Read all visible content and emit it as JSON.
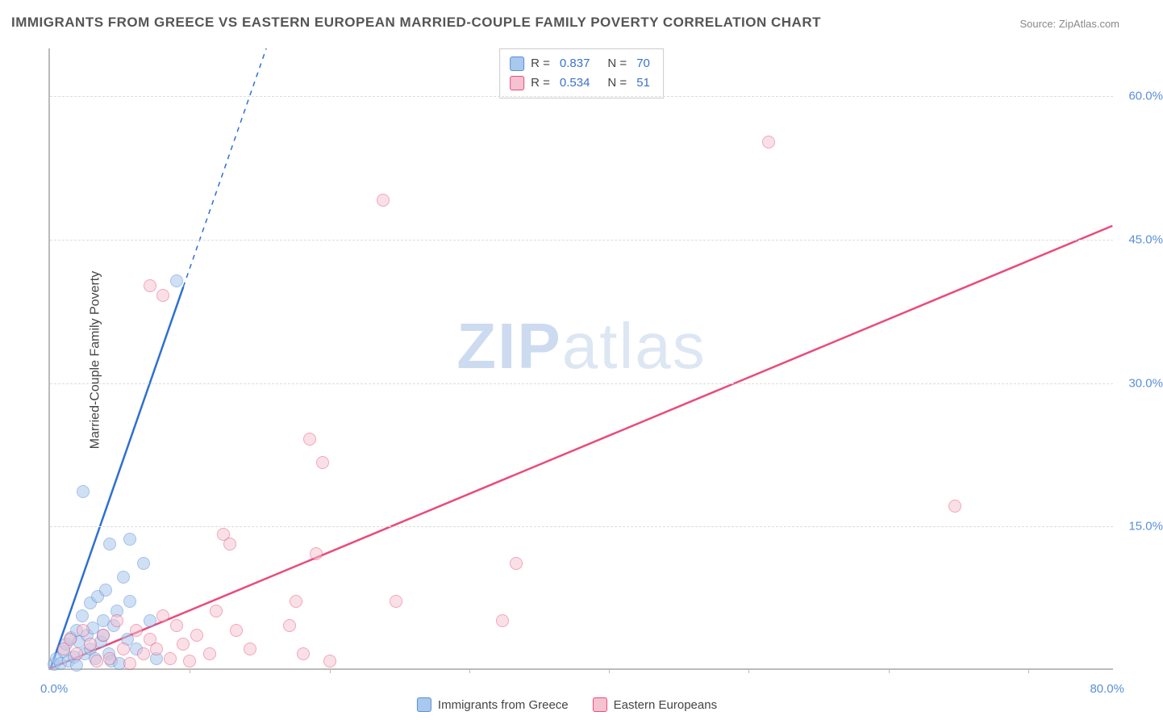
{
  "title": "IMMIGRANTS FROM GREECE VS EASTERN EUROPEAN MARRIED-COUPLE FAMILY POVERTY CORRELATION CHART",
  "source": "Source: ZipAtlas.com",
  "ylabel": "Married-Couple Family Poverty",
  "watermark_zip": "ZIP",
  "watermark_atlas": "atlas",
  "chart": {
    "type": "scatter",
    "background_color": "#ffffff",
    "grid_color": "#dddddd",
    "axis_color": "#bbbbbb",
    "tick_label_color": "#5a8fd6",
    "tick_fontsize": 15,
    "xlim": [
      0,
      80
    ],
    "ylim": [
      0,
      65
    ],
    "xticks": [
      0,
      80
    ],
    "xtick_labels": [
      "0.0%",
      "80.0%"
    ],
    "xtick_minor_positions": [
      10.5,
      21,
      31.5,
      42,
      52.5,
      63,
      73.5
    ],
    "yticks": [
      15,
      30,
      45,
      60
    ],
    "ytick_labels": [
      "15.0%",
      "30.0%",
      "45.0%",
      "60.0%"
    ],
    "marker_radius": 8,
    "marker_border_width": 1.5,
    "series": [
      {
        "name": "Immigrants from Greece",
        "fill_color": "#a9c8ee",
        "border_color": "#5a8fd6",
        "fill_opacity": 0.55,
        "trend_color": "#2f6fd0",
        "trend_width": 2.5,
        "trend_slope": 4.0,
        "trend_intercept": 0,
        "trend_dashed_above_x": 10,
        "R": "0.837",
        "N": "70",
        "points": [
          [
            0.3,
            0.4
          ],
          [
            0.5,
            1.0
          ],
          [
            0.8,
            0.5
          ],
          [
            1.0,
            1.8
          ],
          [
            1.2,
            2.5
          ],
          [
            1.4,
            0.8
          ],
          [
            1.6,
            3.2
          ],
          [
            1.8,
            1.2
          ],
          [
            2.0,
            4.0
          ],
          [
            2.0,
            0.3
          ],
          [
            2.2,
            2.8
          ],
          [
            2.4,
            5.5
          ],
          [
            2.6,
            1.5
          ],
          [
            2.8,
            3.5
          ],
          [
            3.0,
            6.8
          ],
          [
            3.0,
            2.0
          ],
          [
            3.2,
            4.2
          ],
          [
            3.4,
            1.0
          ],
          [
            3.6,
            7.5
          ],
          [
            3.8,
            2.8
          ],
          [
            4.0,
            5.0
          ],
          [
            4.0,
            3.5
          ],
          [
            4.2,
            8.2
          ],
          [
            4.4,
            1.5
          ],
          [
            4.6,
            0.8
          ],
          [
            4.8,
            4.5
          ],
          [
            5.0,
            6.0
          ],
          [
            5.2,
            0.5
          ],
          [
            5.5,
            9.5
          ],
          [
            5.8,
            3.0
          ],
          [
            6.0,
            7.0
          ],
          [
            6.5,
            2.0
          ],
          [
            7.0,
            11.0
          ],
          [
            7.5,
            5.0
          ],
          [
            8.0,
            1.0
          ],
          [
            2.5,
            18.5
          ],
          [
            4.5,
            13.0
          ],
          [
            6.0,
            13.5
          ],
          [
            9.5,
            40.5
          ]
        ]
      },
      {
        "name": "Eastern Europeans",
        "fill_color": "#f5c2d1",
        "border_color": "#e94b7a",
        "fill_opacity": 0.5,
        "trend_color": "#e94b7a",
        "trend_width": 2.5,
        "trend_slope": 0.58,
        "trend_intercept": 0,
        "R": "0.534",
        "N": "51",
        "points": [
          [
            1.0,
            2.0
          ],
          [
            1.5,
            3.0
          ],
          [
            2.0,
            1.5
          ],
          [
            2.5,
            4.0
          ],
          [
            3.0,
            2.5
          ],
          [
            3.5,
            0.8
          ],
          [
            4.0,
            3.5
          ],
          [
            4.5,
            1.0
          ],
          [
            5.0,
            5.0
          ],
          [
            5.5,
            2.0
          ],
          [
            6.0,
            0.5
          ],
          [
            6.5,
            4.0
          ],
          [
            7.0,
            1.5
          ],
          [
            7.5,
            3.0
          ],
          [
            8.0,
            2.0
          ],
          [
            8.5,
            5.5
          ],
          [
            9.0,
            1.0
          ],
          [
            9.5,
            4.5
          ],
          [
            10.0,
            2.5
          ],
          [
            10.5,
            0.8
          ],
          [
            11.0,
            3.5
          ],
          [
            12.0,
            1.5
          ],
          [
            12.5,
            6.0
          ],
          [
            13.0,
            14.0
          ],
          [
            13.5,
            13.0
          ],
          [
            14.0,
            4.0
          ],
          [
            15.0,
            2.0
          ],
          [
            7.5,
            40.0
          ],
          [
            8.5,
            39.0
          ],
          [
            18.0,
            4.5
          ],
          [
            18.5,
            7.0
          ],
          [
            19.0,
            1.5
          ],
          [
            20.0,
            12.0
          ],
          [
            21.0,
            0.8
          ],
          [
            19.5,
            24.0
          ],
          [
            20.5,
            21.5
          ],
          [
            26.0,
            7.0
          ],
          [
            34.0,
            5.0
          ],
          [
            35.0,
            11.0
          ],
          [
            25.0,
            49.0
          ],
          [
            54.0,
            55.0
          ],
          [
            68.0,
            17.0
          ]
        ]
      }
    ]
  },
  "legend_bottom": {
    "items": [
      {
        "label": "Immigrants from Greece",
        "fill": "#a9c8ee",
        "border": "#5a8fd6"
      },
      {
        "label": "Eastern Europeans",
        "fill": "#f5c2d1",
        "border": "#e94b7a"
      }
    ]
  },
  "legend_top": {
    "rows": [
      {
        "fill": "#a9c8ee",
        "border": "#5a8fd6",
        "R_label": "R =",
        "R": "0.837",
        "N_label": "N =",
        "N": "70"
      },
      {
        "fill": "#f5c2d1",
        "border": "#e94b7a",
        "R_label": "R =",
        "R": "0.534",
        "N_label": "N =",
        "N": "51"
      }
    ]
  }
}
